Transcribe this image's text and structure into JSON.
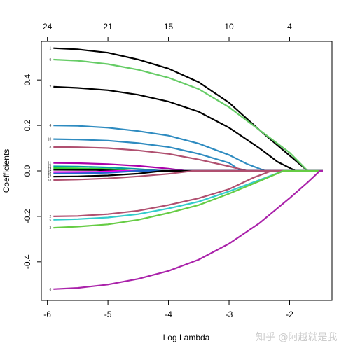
{
  "watermark": "知乎 @阿越就是我",
  "chart_data": {
    "type": "line",
    "title": "",
    "xlabel": "Log Lambda",
    "ylabel": "Coefficients",
    "xlim": [
      -6.1,
      -1.3
    ],
    "ylim": [
      -0.57,
      0.57
    ],
    "x_ticks": [
      -6,
      -5,
      -4,
      -3,
      -2
    ],
    "x_tick_labels": [
      "-6",
      "-5",
      "-4",
      "-3",
      "-2"
    ],
    "y_ticks": [
      -0.4,
      -0.2,
      0.0,
      0.2,
      0.4
    ],
    "y_tick_labels": [
      "-0.4",
      "-0.2",
      "0.0",
      "0.2",
      "0.4"
    ],
    "top_axis": {
      "ticks": [
        -6,
        -5,
        -4,
        -3,
        -2
      ],
      "labels": [
        "24",
        "21",
        "15",
        "10",
        "4"
      ]
    },
    "grid": false,
    "series": [
      {
        "label": "1",
        "color": "#000000",
        "points": [
          [
            -5.9,
            0.54
          ],
          [
            -5.5,
            0.535
          ],
          [
            -5,
            0.52
          ],
          [
            -4.5,
            0.49
          ],
          [
            -4,
            0.45
          ],
          [
            -3.5,
            0.39
          ],
          [
            -3,
            0.3
          ],
          [
            -2.5,
            0.18
          ],
          [
            -2.1,
            0.09
          ],
          [
            -1.7,
            0.0
          ]
        ]
      },
      {
        "label": "9",
        "color": "#66cc66",
        "points": [
          [
            -5.9,
            0.49
          ],
          [
            -5.5,
            0.485
          ],
          [
            -5,
            0.47
          ],
          [
            -4.5,
            0.445
          ],
          [
            -4,
            0.41
          ],
          [
            -3.5,
            0.36
          ],
          [
            -3,
            0.28
          ],
          [
            -2.5,
            0.18
          ],
          [
            -2,
            0.08
          ],
          [
            -1.7,
            0.0
          ]
        ]
      },
      {
        "label": "7",
        "color": "#000000",
        "points": [
          [
            -5.9,
            0.37
          ],
          [
            -5.5,
            0.365
          ],
          [
            -5,
            0.355
          ],
          [
            -4.5,
            0.335
          ],
          [
            -4,
            0.305
          ],
          [
            -3.5,
            0.26
          ],
          [
            -3,
            0.19
          ],
          [
            -2.5,
            0.1
          ],
          [
            -2.2,
            0.04
          ],
          [
            -1.9,
            0.0
          ]
        ]
      },
      {
        "label": "4",
        "color": "#2e8bc0",
        "points": [
          [
            -5.9,
            0.2
          ],
          [
            -5.5,
            0.198
          ],
          [
            -5,
            0.19
          ],
          [
            -4.5,
            0.175
          ],
          [
            -4,
            0.155
          ],
          [
            -3.5,
            0.12
          ],
          [
            -3,
            0.07
          ],
          [
            -2.7,
            0.03
          ],
          [
            -2.4,
            0.0
          ]
        ]
      },
      {
        "label": "10",
        "color": "#2e8bc0",
        "points": [
          [
            -5.9,
            0.14
          ],
          [
            -5.5,
            0.138
          ],
          [
            -5,
            0.133
          ],
          [
            -4.5,
            0.122
          ],
          [
            -4,
            0.105
          ],
          [
            -3.5,
            0.075
          ],
          [
            -3,
            0.035
          ],
          [
            -2.8,
            0.0
          ]
        ]
      },
      {
        "label": "8",
        "color": "#b05070",
        "points": [
          [
            -5.9,
            0.105
          ],
          [
            -5.5,
            0.104
          ],
          [
            -5,
            0.1
          ],
          [
            -4.5,
            0.09
          ],
          [
            -4,
            0.075
          ],
          [
            -3.5,
            0.05
          ],
          [
            -3,
            0.02
          ],
          [
            -2.7,
            0.0
          ]
        ]
      },
      {
        "label": "11",
        "color": "#aa00aa",
        "points": [
          [
            -5.9,
            0.035
          ],
          [
            -5.5,
            0.034
          ],
          [
            -5,
            0.03
          ],
          [
            -4.5,
            0.022
          ],
          [
            -4,
            0.01
          ],
          [
            -3.7,
            0.0
          ]
        ]
      },
      {
        "label": "12",
        "color": "#00a0a0",
        "points": [
          [
            -5.9,
            0.02
          ],
          [
            -5.5,
            0.019
          ],
          [
            -5,
            0.015
          ],
          [
            -4.5,
            0.008
          ],
          [
            -4.1,
            0.0
          ]
        ]
      },
      {
        "label": "13",
        "color": "#33cc33",
        "points": [
          [
            -5.9,
            0.012
          ],
          [
            -5.5,
            0.011
          ],
          [
            -5,
            0.008
          ],
          [
            -4.6,
            0.0
          ]
        ]
      },
      {
        "label": "14",
        "color": "#000000",
        "points": [
          [
            -5.9,
            0.005
          ],
          [
            -5.2,
            0.004
          ],
          [
            -4.8,
            0.0
          ]
        ]
      },
      {
        "label": "15",
        "color": "#ee00ee",
        "points": [
          [
            -5.9,
            -0.005
          ],
          [
            -5.2,
            -0.004
          ],
          [
            -4.8,
            0.0
          ]
        ]
      },
      {
        "label": "16",
        "color": "#2266cc",
        "points": [
          [
            -5.9,
            -0.012
          ],
          [
            -5.5,
            -0.011
          ],
          [
            -5,
            -0.008
          ],
          [
            -4.5,
            0.0
          ]
        ]
      },
      {
        "label": "17",
        "color": "#000000",
        "points": [
          [
            -5.9,
            -0.025
          ],
          [
            -5.5,
            -0.024
          ],
          [
            -5,
            -0.02
          ],
          [
            -4.5,
            -0.012
          ],
          [
            -4.1,
            0.0
          ]
        ]
      },
      {
        "label": "18",
        "color": "#b05070",
        "points": [
          [
            -5.9,
            -0.04
          ],
          [
            -5.5,
            -0.038
          ],
          [
            -5,
            -0.033
          ],
          [
            -4.5,
            -0.024
          ],
          [
            -4,
            -0.013
          ],
          [
            -3.6,
            0.0
          ]
        ]
      },
      {
        "label": "2",
        "color": "#b05070",
        "points": [
          [
            -5.9,
            -0.2
          ],
          [
            -5.5,
            -0.198
          ],
          [
            -5,
            -0.19
          ],
          [
            -4.5,
            -0.175
          ],
          [
            -4,
            -0.15
          ],
          [
            -3.5,
            -0.12
          ],
          [
            -3,
            -0.08
          ],
          [
            -2.6,
            -0.03
          ],
          [
            -2.3,
            0.0
          ]
        ]
      },
      {
        "label": "5",
        "color": "#33cccc",
        "points": [
          [
            -5.9,
            -0.215
          ],
          [
            -5.5,
            -0.212
          ],
          [
            -5,
            -0.205
          ],
          [
            -4.5,
            -0.19
          ],
          [
            -4,
            -0.165
          ],
          [
            -3.5,
            -0.135
          ],
          [
            -3,
            -0.09
          ],
          [
            -2.5,
            -0.04
          ],
          [
            -2.1,
            0.0
          ]
        ]
      },
      {
        "label": "3",
        "color": "#66cc44",
        "points": [
          [
            -5.9,
            -0.25
          ],
          [
            -5.5,
            -0.245
          ],
          [
            -5,
            -0.235
          ],
          [
            -4.5,
            -0.215
          ],
          [
            -4,
            -0.185
          ],
          [
            -3.5,
            -0.15
          ],
          [
            -3,
            -0.1
          ],
          [
            -2.5,
            -0.045
          ],
          [
            -2.1,
            0.0
          ]
        ]
      },
      {
        "label": "6",
        "color": "#aa22aa",
        "points": [
          [
            -5.9,
            -0.52
          ],
          [
            -5.5,
            -0.515
          ],
          [
            -5,
            -0.5
          ],
          [
            -4.5,
            -0.475
          ],
          [
            -4,
            -0.44
          ],
          [
            -3.5,
            -0.39
          ],
          [
            -3,
            -0.32
          ],
          [
            -2.5,
            -0.23
          ],
          [
            -2,
            -0.12
          ],
          [
            -1.7,
            -0.05
          ],
          [
            -1.5,
            0.0
          ]
        ]
      }
    ]
  }
}
